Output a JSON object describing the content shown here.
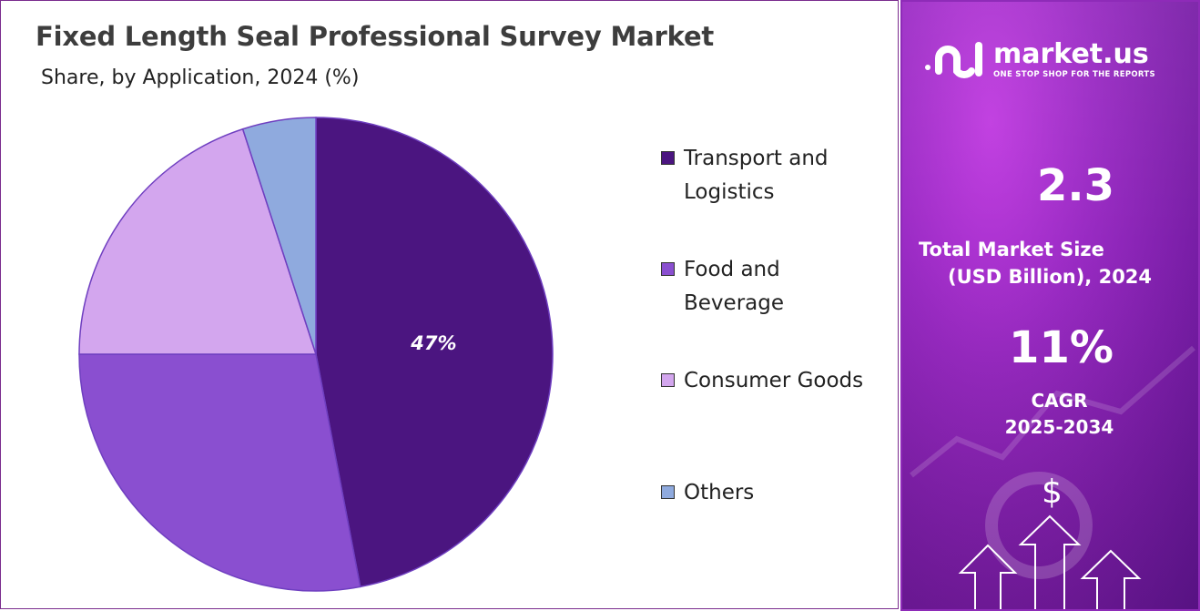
{
  "chart_data": {
    "type": "pie",
    "title": "Fixed Length Seal Professional Survey Market",
    "subtitle": "Share, by Application, 2024 (%)",
    "categories": [
      "Transport and\nLogistics",
      "Food and\nBeverage",
      "Consumer Goods",
      "Others"
    ],
    "values": [
      47,
      28,
      20,
      5
    ],
    "colors": [
      "#4b1580",
      "#8a4fd0",
      "#d3a6ee",
      "#8faade"
    ],
    "data_labels": [
      "47%",
      "",
      "",
      ""
    ],
    "legend_position": "right"
  },
  "side_panel": {
    "brand": "market.us",
    "tagline": "ONE STOP SHOP FOR THE REPORTS",
    "market_size_value": "2.3",
    "market_size_label_line1": "Total Market Size",
    "market_size_label_line2": "(USD Billion), 2024",
    "cagr_value": "11%",
    "cagr_label": "CAGR",
    "cagr_period": "2025-2034",
    "dollar_symbol": "$",
    "icons": [
      "logo-icon",
      "dollar-icon",
      "arrow-up-icon"
    ]
  }
}
